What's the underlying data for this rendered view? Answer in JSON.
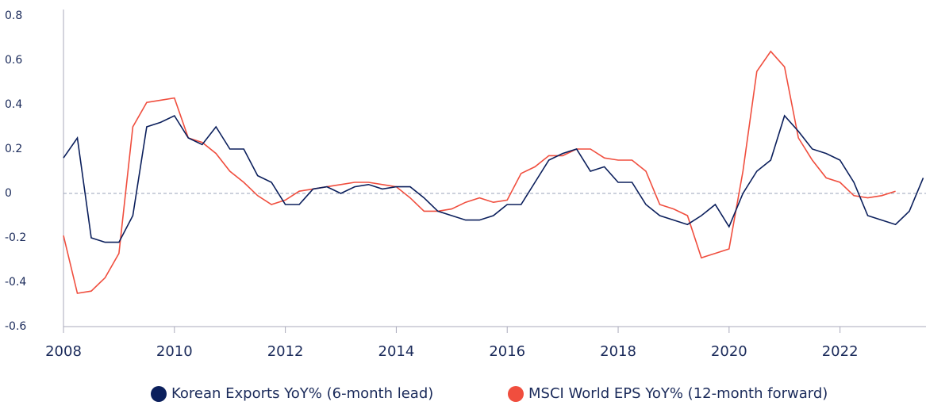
{
  "chart_data": {
    "type": "line",
    "x": [
      2008.0,
      2008.25,
      2008.5,
      2008.75,
      2009.0,
      2009.25,
      2009.5,
      2009.75,
      2010.0,
      2010.25,
      2010.5,
      2010.75,
      2011.0,
      2011.25,
      2011.5,
      2011.75,
      2012.0,
      2012.25,
      2012.5,
      2012.75,
      2013.0,
      2013.25,
      2013.5,
      2013.75,
      2014.0,
      2014.25,
      2014.5,
      2014.75,
      2015.0,
      2015.25,
      2015.5,
      2015.75,
      2016.0,
      2016.25,
      2016.5,
      2016.75,
      2017.0,
      2017.25,
      2017.5,
      2017.75,
      2018.0,
      2018.25,
      2018.5,
      2018.75,
      2019.0,
      2019.25,
      2019.5,
      2019.75,
      2020.0,
      2020.25,
      2020.5,
      2020.75,
      2021.0,
      2021.25,
      2021.5,
      2021.75,
      2022.0,
      2022.25,
      2022.5,
      2022.75,
      2023.0,
      2023.25,
      2023.5
    ],
    "series": [
      {
        "name": "Korean Exports YoY% (6-month lead)",
        "color": "#0b1f5c",
        "values": [
          0.16,
          0.25,
          -0.2,
          -0.22,
          -0.22,
          -0.1,
          0.3,
          0.32,
          0.35,
          0.25,
          0.22,
          0.3,
          0.2,
          0.2,
          0.08,
          0.05,
          -0.05,
          -0.05,
          0.02,
          0.03,
          0.0,
          0.03,
          0.04,
          0.02,
          0.03,
          0.03,
          -0.02,
          -0.08,
          -0.1,
          -0.12,
          -0.12,
          -0.1,
          -0.05,
          -0.05,
          0.05,
          0.15,
          0.18,
          0.2,
          0.1,
          0.12,
          0.05,
          0.05,
          -0.05,
          -0.1,
          -0.12,
          -0.14,
          -0.1,
          -0.05,
          -0.15,
          0.0,
          0.1,
          0.15,
          0.35,
          0.28,
          0.2,
          0.18,
          0.15,
          0.05,
          -0.1,
          -0.12,
          -0.14,
          -0.08,
          0.07
        ]
      },
      {
        "name": "MSCI World EPS YoY% (12-month forward)",
        "color": "#f04e3e",
        "values": [
          -0.19,
          -0.45,
          -0.44,
          -0.38,
          -0.27,
          0.3,
          0.41,
          0.42,
          0.43,
          0.25,
          0.23,
          0.18,
          0.1,
          0.05,
          -0.01,
          -0.05,
          -0.03,
          0.01,
          0.02,
          0.03,
          0.04,
          0.05,
          0.05,
          0.04,
          0.03,
          -0.02,
          -0.08,
          -0.08,
          -0.07,
          -0.04,
          -0.02,
          -0.04,
          -0.03,
          0.09,
          0.12,
          0.17,
          0.17,
          0.2,
          0.2,
          0.16,
          0.15,
          0.15,
          0.1,
          -0.05,
          -0.07,
          -0.1,
          -0.29,
          -0.27,
          -0.25,
          0.1,
          0.55,
          0.64,
          0.57,
          0.25,
          0.15,
          0.07,
          0.05,
          -0.01,
          -0.02,
          -0.01,
          0.01,
          null,
          null
        ]
      }
    ],
    "xlim": [
      2008,
      2023.55
    ],
    "xticks": [
      2008,
      2010,
      2012,
      2014,
      2016,
      2018,
      2020,
      2022
    ],
    "ylim": [
      -0.6,
      0.8
    ],
    "yticks": [
      -0.6,
      -0.4,
      -0.2,
      0,
      0.2,
      0.4,
      0.6,
      0.8
    ],
    "zero_line": true
  }
}
